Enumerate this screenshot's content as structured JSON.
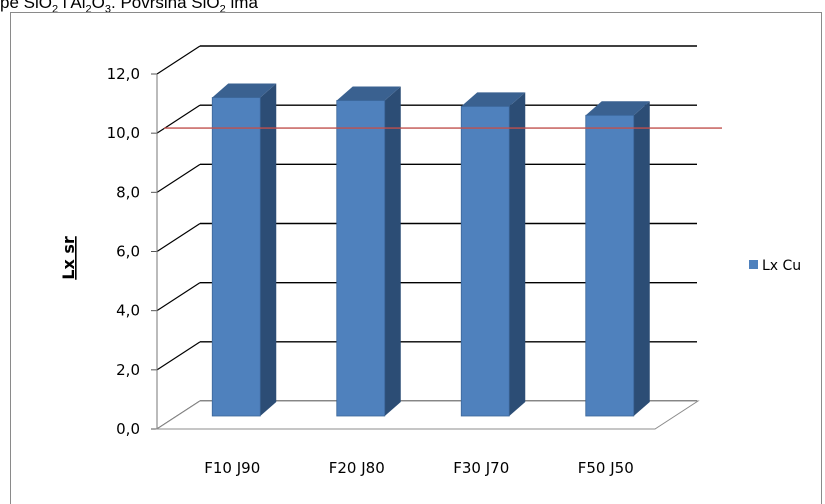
{
  "header": {
    "prefix": "pe SiO",
    "sub1": "2",
    "mid": " i Al",
    "sub2": "2",
    "mid2": "O",
    "sub3": "3",
    "suffix": ". Površina SiO",
    "sub4": "2",
    "tail": " ima"
  },
  "chart_data": {
    "type": "bar",
    "categories": [
      "F10 J90",
      "F20 J80",
      "F30 J70",
      "F50 J50"
    ],
    "series": [
      {
        "name": "Lx Cu",
        "values": [
          10.9,
          10.8,
          10.6,
          10.3
        ]
      }
    ],
    "reference_line": 9.8,
    "ylabel": "Lx  sr",
    "ylim": [
      0,
      12
    ],
    "yticks": [
      "0,0",
      "2,0",
      "4,0",
      "6,0",
      "8,0",
      "10,0",
      "12,0"
    ],
    "grid": true,
    "legend": "right",
    "colors": {
      "bar_front": "#4f81bd",
      "bar_side": "#2c4d75",
      "bar_top": "#3a6190",
      "reference": "#c0504d",
      "grid": "#000000"
    }
  }
}
